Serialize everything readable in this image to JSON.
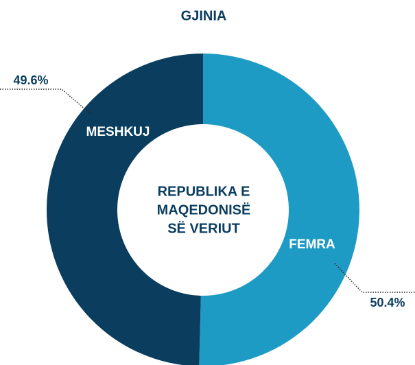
{
  "chart_data": {
    "type": "donut",
    "title": "GJINIA",
    "center_label": [
      "REPUBLIKA E",
      "MAQEDONISË",
      "SË VERIUT"
    ],
    "categories": [
      "FEMRA",
      "MESHKUJ"
    ],
    "values": [
      50.4,
      49.6
    ],
    "value_labels": [
      "50.4%",
      "49.6%"
    ],
    "colors": [
      "#1e9bc4",
      "#0a3d5e"
    ]
  }
}
